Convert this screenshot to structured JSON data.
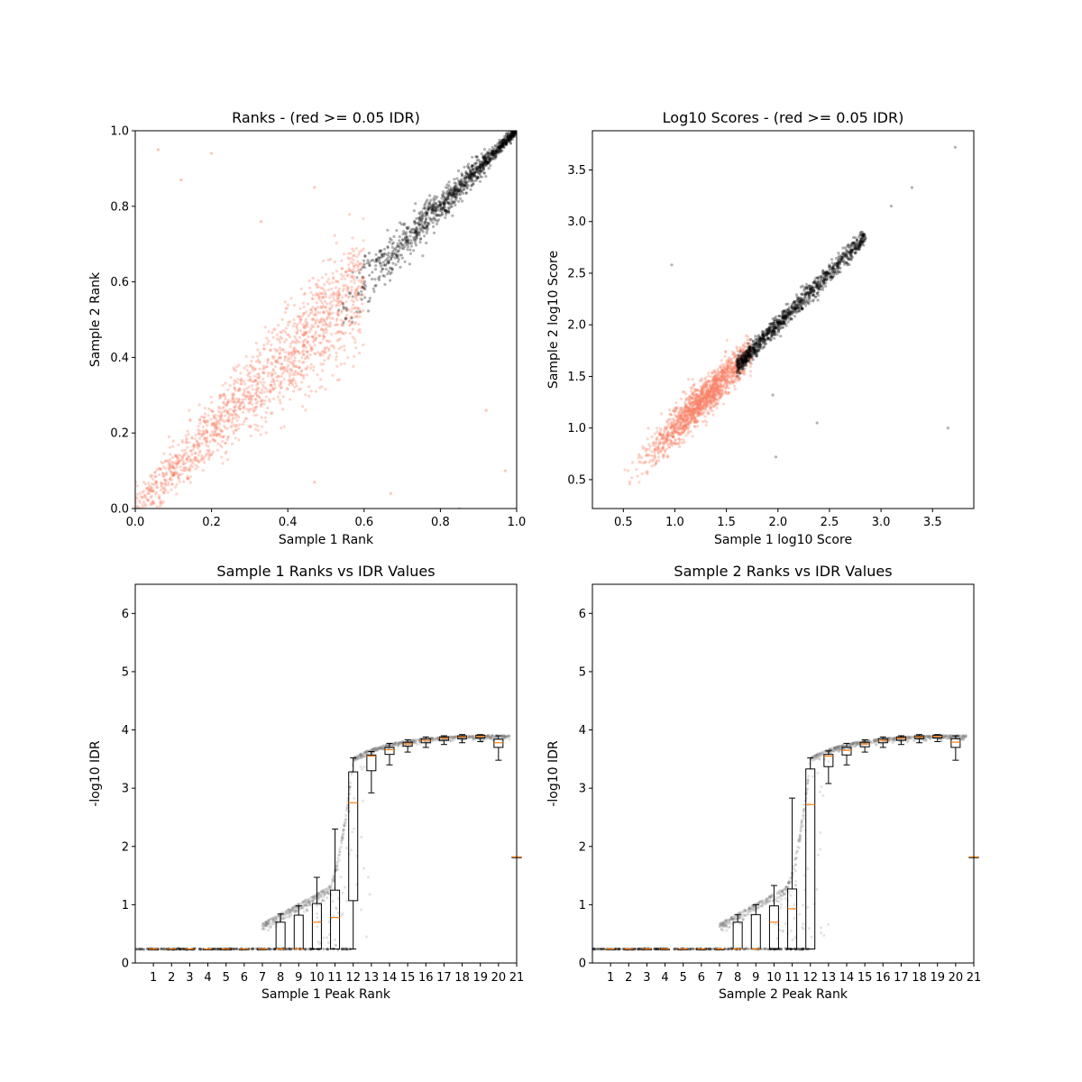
{
  "chart_data": [
    {
      "type": "scatter",
      "title": "Ranks - (red >= 0.05 IDR)",
      "xlabel": "Sample 1 Rank",
      "ylabel": "Sample 2 Rank",
      "xlim": [
        0.0,
        1.0
      ],
      "ylim": [
        0.0,
        1.0
      ],
      "xticks": [
        "0.0",
        "0.2",
        "0.4",
        "0.6",
        "0.8",
        "1.0"
      ],
      "yticks": [
        "0.0",
        "0.2",
        "0.4",
        "0.6",
        "0.8",
        "1.0"
      ],
      "grid": false,
      "series": [
        {
          "color": "#fa8064",
          "point_count": 1500,
          "x_range": [
            0.0,
            0.6
          ],
          "trend": "y ≈ x, wide spread"
        },
        {
          "color": "#000000",
          "point_count": 1100,
          "x_range": [
            0.52,
            1.0
          ],
          "trend": "y ≈ x, narrow spread"
        }
      ],
      "outliers": [
        [
          0.06,
          0.95
        ],
        [
          0.12,
          0.87
        ],
        [
          0.2,
          0.94
        ],
        [
          0.47,
          0.85
        ],
        [
          0.33,
          0.76
        ],
        [
          0.92,
          0.26
        ],
        [
          0.97,
          0.1
        ],
        [
          0.85,
          0.0
        ],
        [
          0.67,
          0.04
        ],
        [
          0.47,
          0.07
        ]
      ]
    },
    {
      "type": "scatter",
      "title": "Log10 Scores - (red >= 0.05 IDR)",
      "xlabel": "Sample 1 log10 Score",
      "ylabel": "Sample 2 log10 Score",
      "xlim": [
        0.2,
        3.9
      ],
      "ylim": [
        0.22,
        3.88
      ],
      "xticks": [
        "0.5",
        "1.0",
        "1.5",
        "2.0",
        "2.5",
        "3.0",
        "3.5"
      ],
      "yticks": [
        "0.5",
        "1.0",
        "1.5",
        "2.0",
        "2.5",
        "3.0",
        "3.5"
      ],
      "grid": false,
      "series": [
        {
          "color": "#fa8064",
          "point_count": 1500,
          "x_range": [
            0.45,
            1.75
          ],
          "trend": "y ≈ x"
        },
        {
          "color": "#000000",
          "point_count": 1100,
          "x_range": [
            1.6,
            2.85
          ],
          "trend": "y ≈ x"
        }
      ],
      "outliers": [
        [
          3.72,
          3.72
        ],
        [
          3.3,
          3.33
        ],
        [
          3.1,
          3.15
        ],
        [
          0.97,
          2.58
        ],
        [
          2.38,
          1.05
        ],
        [
          1.95,
          1.32
        ],
        [
          3.65,
          1.0
        ],
        [
          1.98,
          0.72
        ]
      ]
    },
    {
      "type": "box",
      "title": "Sample 1 Ranks vs IDR Values",
      "xlabel": "Sample 1 Peak Rank",
      "ylabel": "-log10 IDR",
      "xlim": [
        0,
        21
      ],
      "ylim": [
        0,
        6.5
      ],
      "xticks": [
        "1",
        "2",
        "3",
        "4",
        "5",
        "6",
        "7",
        "8",
        "9",
        "10",
        "11",
        "12",
        "13",
        "14",
        "15",
        "16",
        "17",
        "18",
        "19",
        "20",
        "21"
      ],
      "yticks": [
        "0",
        "1",
        "2",
        "3",
        "4",
        "5",
        "6"
      ],
      "grid": false,
      "boxes": [
        {
          "pos": 1,
          "whislo": 0.24,
          "q1": 0.24,
          "med": 0.24,
          "q3": 0.24,
          "whishi": 0.24
        },
        {
          "pos": 2,
          "whislo": 0.24,
          "q1": 0.24,
          "med": 0.24,
          "q3": 0.24,
          "whishi": 0.24
        },
        {
          "pos": 3,
          "whislo": 0.24,
          "q1": 0.24,
          "med": 0.24,
          "q3": 0.24,
          "whishi": 0.24
        },
        {
          "pos": 4,
          "whislo": 0.24,
          "q1": 0.24,
          "med": 0.24,
          "q3": 0.24,
          "whishi": 0.24
        },
        {
          "pos": 5,
          "whislo": 0.24,
          "q1": 0.24,
          "med": 0.24,
          "q3": 0.24,
          "whishi": 0.24
        },
        {
          "pos": 6,
          "whislo": 0.24,
          "q1": 0.24,
          "med": 0.24,
          "q3": 0.24,
          "whishi": 0.24
        },
        {
          "pos": 7,
          "whislo": 0.24,
          "q1": 0.24,
          "med": 0.24,
          "q3": 0.24,
          "whishi": 0.24
        },
        {
          "pos": 8,
          "whislo": 0.24,
          "q1": 0.24,
          "med": 0.24,
          "q3": 0.7,
          "whishi": 0.84
        },
        {
          "pos": 9,
          "whislo": 0.24,
          "q1": 0.24,
          "med": 0.24,
          "q3": 0.82,
          "whishi": 0.98
        },
        {
          "pos": 10,
          "whislo": 0.24,
          "q1": 0.24,
          "med": 0.7,
          "q3": 1.02,
          "whishi": 1.47
        },
        {
          "pos": 11,
          "whislo": 0.24,
          "q1": 0.24,
          "med": 0.78,
          "q3": 1.25,
          "whishi": 2.3
        },
        {
          "pos": 12,
          "whislo": 0.24,
          "q1": 1.07,
          "med": 2.75,
          "q3": 3.28,
          "whishi": 3.52
        },
        {
          "pos": 13,
          "whislo": 2.92,
          "q1": 3.3,
          "med": 3.55,
          "q3": 3.57,
          "whishi": 3.63
        },
        {
          "pos": 14,
          "whislo": 3.4,
          "q1": 3.58,
          "med": 3.66,
          "q3": 3.7,
          "whishi": 3.77
        },
        {
          "pos": 15,
          "whislo": 3.62,
          "q1": 3.72,
          "med": 3.76,
          "q3": 3.79,
          "whishi": 3.83
        },
        {
          "pos": 16,
          "whislo": 3.7,
          "q1": 3.78,
          "med": 3.82,
          "q3": 3.85,
          "whishi": 3.88
        },
        {
          "pos": 17,
          "whislo": 3.75,
          "q1": 3.82,
          "med": 3.86,
          "q3": 3.88,
          "whishi": 3.9
        },
        {
          "pos": 18,
          "whislo": 3.78,
          "q1": 3.85,
          "med": 3.88,
          "q3": 3.9,
          "whishi": 3.92
        },
        {
          "pos": 19,
          "whislo": 3.8,
          "q1": 3.86,
          "med": 3.89,
          "q3": 3.91,
          "whishi": 3.92
        },
        {
          "pos": 20,
          "whislo": 3.48,
          "q1": 3.7,
          "med": 3.78,
          "q3": 3.84,
          "whishi": 3.9
        },
        {
          "pos": 21,
          "whislo": 1.82,
          "q1": 1.82,
          "med": 1.82,
          "q3": 1.82,
          "whishi": 1.82
        }
      ]
    },
    {
      "type": "box",
      "title": "Sample 2 Ranks vs IDR Values",
      "xlabel": "Sample 2 Peak Rank",
      "ylabel": "-log10 IDR",
      "xlim": [
        0,
        21
      ],
      "ylim": [
        0,
        6.5
      ],
      "xticks": [
        "1",
        "2",
        "3",
        "4",
        "5",
        "6",
        "7",
        "8",
        "9",
        "10",
        "11",
        "12",
        "13",
        "14",
        "15",
        "16",
        "17",
        "18",
        "19",
        "20",
        "21"
      ],
      "yticks": [
        "0",
        "1",
        "2",
        "3",
        "4",
        "5",
        "6"
      ],
      "grid": false,
      "boxes": [
        {
          "pos": 1,
          "whislo": 0.24,
          "q1": 0.24,
          "med": 0.24,
          "q3": 0.24,
          "whishi": 0.24
        },
        {
          "pos": 2,
          "whislo": 0.24,
          "q1": 0.24,
          "med": 0.24,
          "q3": 0.24,
          "whishi": 0.24
        },
        {
          "pos": 3,
          "whislo": 0.24,
          "q1": 0.24,
          "med": 0.24,
          "q3": 0.24,
          "whishi": 0.24
        },
        {
          "pos": 4,
          "whislo": 0.24,
          "q1": 0.24,
          "med": 0.24,
          "q3": 0.24,
          "whishi": 0.24
        },
        {
          "pos": 5,
          "whislo": 0.24,
          "q1": 0.24,
          "med": 0.24,
          "q3": 0.24,
          "whishi": 0.24
        },
        {
          "pos": 6,
          "whislo": 0.24,
          "q1": 0.24,
          "med": 0.24,
          "q3": 0.24,
          "whishi": 0.24
        },
        {
          "pos": 7,
          "whislo": 0.24,
          "q1": 0.24,
          "med": 0.24,
          "q3": 0.24,
          "whishi": 0.24
        },
        {
          "pos": 8,
          "whislo": 0.24,
          "q1": 0.24,
          "med": 0.24,
          "q3": 0.7,
          "whishi": 0.83
        },
        {
          "pos": 9,
          "whislo": 0.24,
          "q1": 0.24,
          "med": 0.24,
          "q3": 0.83,
          "whishi": 1.0
        },
        {
          "pos": 10,
          "whislo": 0.24,
          "q1": 0.24,
          "med": 0.7,
          "q3": 0.98,
          "whishi": 1.33
        },
        {
          "pos": 11,
          "whislo": 0.24,
          "q1": 0.24,
          "med": 0.93,
          "q3": 1.27,
          "whishi": 2.83
        },
        {
          "pos": 12,
          "whislo": 0.24,
          "q1": 0.24,
          "med": 2.72,
          "q3": 3.33,
          "whishi": 3.52
        },
        {
          "pos": 13,
          "whislo": 3.08,
          "q1": 3.37,
          "med": 3.55,
          "q3": 3.58,
          "whishi": 3.64
        },
        {
          "pos": 14,
          "whislo": 3.4,
          "q1": 3.57,
          "med": 3.65,
          "q3": 3.7,
          "whishi": 3.77
        },
        {
          "pos": 15,
          "whislo": 3.62,
          "q1": 3.71,
          "med": 3.76,
          "q3": 3.79,
          "whishi": 3.83
        },
        {
          "pos": 16,
          "whislo": 3.7,
          "q1": 3.78,
          "med": 3.82,
          "q3": 3.85,
          "whishi": 3.88
        },
        {
          "pos": 17,
          "whislo": 3.75,
          "q1": 3.82,
          "med": 3.86,
          "q3": 3.88,
          "whishi": 3.9
        },
        {
          "pos": 18,
          "whislo": 3.78,
          "q1": 3.85,
          "med": 3.88,
          "q3": 3.9,
          "whishi": 3.92
        },
        {
          "pos": 19,
          "whislo": 3.8,
          "q1": 3.86,
          "med": 3.89,
          "q3": 3.91,
          "whishi": 3.92
        },
        {
          "pos": 20,
          "whislo": 3.48,
          "q1": 3.7,
          "med": 3.79,
          "q3": 3.85,
          "whishi": 3.9
        },
        {
          "pos": 21,
          "whislo": 1.82,
          "q1": 1.82,
          "med": 1.82,
          "q3": 1.82,
          "whishi": 1.82
        }
      ]
    }
  ],
  "colors": {
    "below_threshold": "#fa8064",
    "above_threshold": "#000000",
    "box_median": "#ff7f0e",
    "box_points": "#808080"
  }
}
